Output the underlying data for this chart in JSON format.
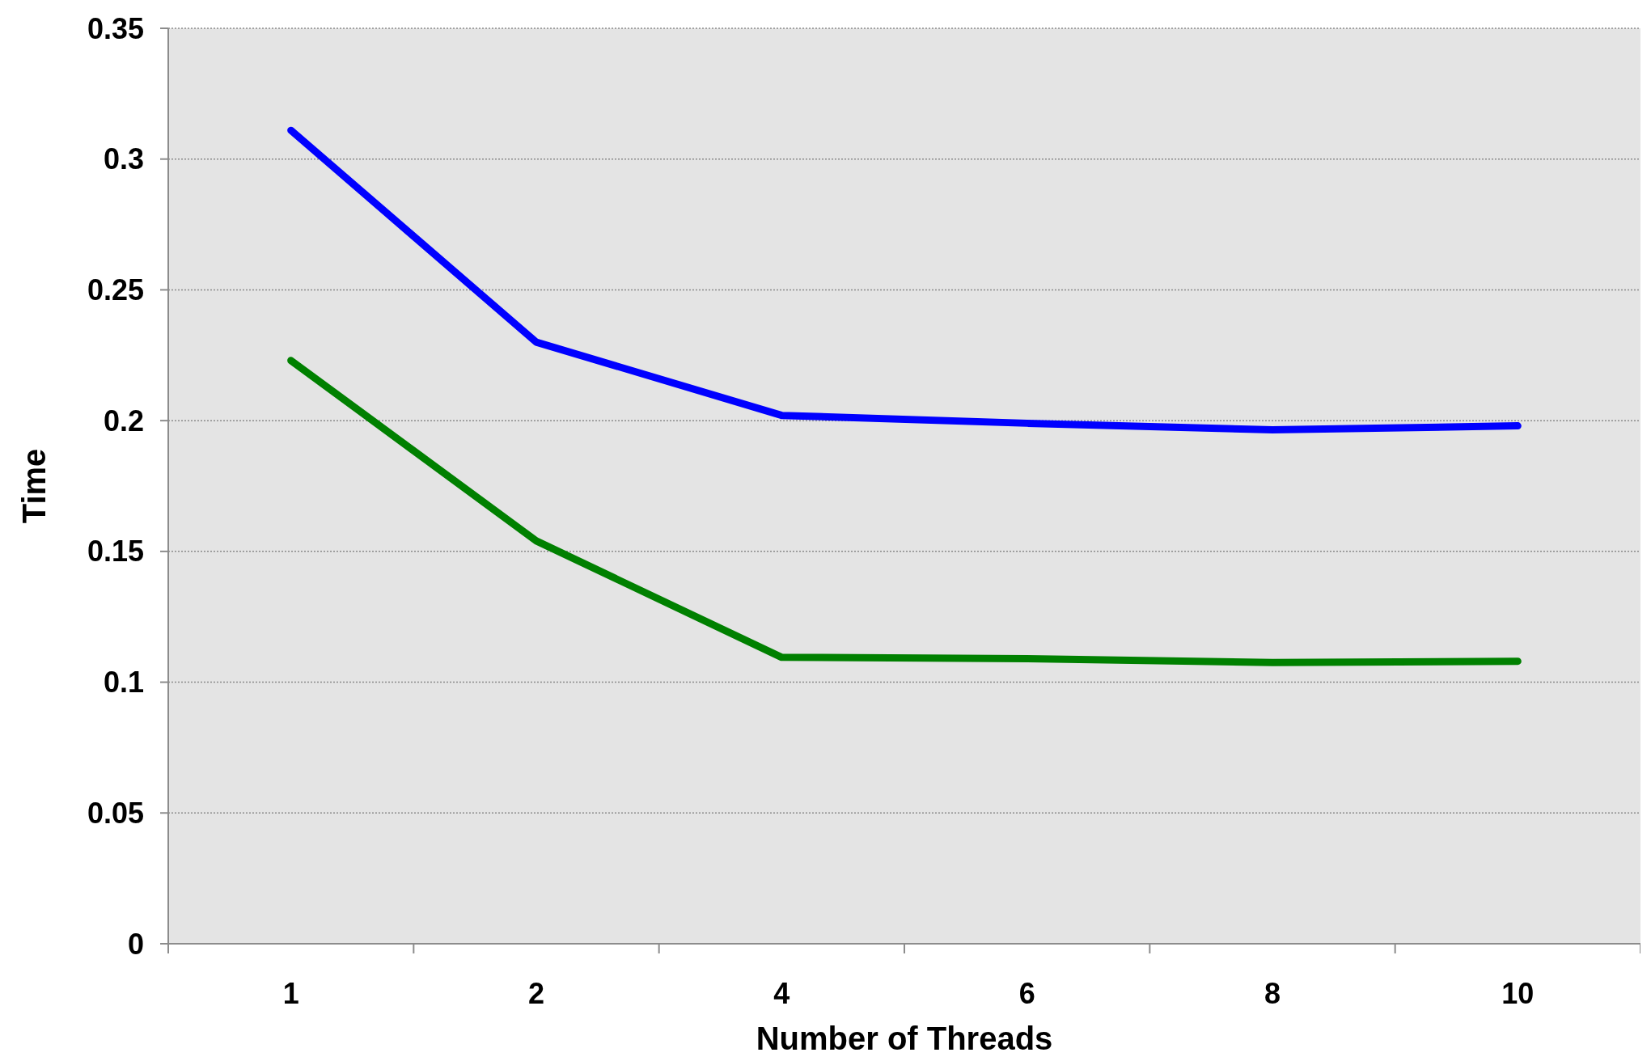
{
  "chart_data": {
    "type": "line",
    "xlabel": "Number of Threads",
    "ylabel": "Time",
    "categories": [
      "1",
      "2",
      "4",
      "6",
      "8",
      "10"
    ],
    "series": [
      {
        "color": "#0000ff",
        "values": [
          0.311,
          0.23,
          0.202,
          0.199,
          0.1965,
          0.198
        ]
      },
      {
        "color": "#008000",
        "values": [
          0.223,
          0.154,
          0.1095,
          0.109,
          0.1075,
          0.108
        ]
      }
    ],
    "ylim": [
      0,
      0.35
    ],
    "yticks": [
      0,
      0.05,
      0.1,
      0.15,
      0.2,
      0.25,
      0.3,
      0.35
    ],
    "grid": "y",
    "marker": "none",
    "line_style": "solid"
  }
}
